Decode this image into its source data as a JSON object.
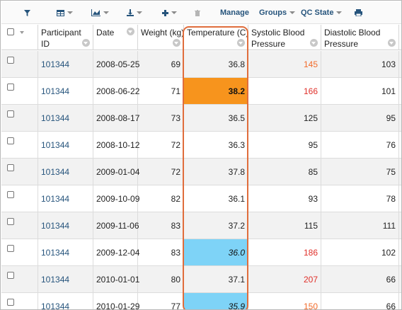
{
  "toolbar": {
    "manage_label": "Manage",
    "groups_label": "Groups",
    "qc_state_label": "QC State"
  },
  "columns": [
    {
      "key": "select",
      "label": ""
    },
    {
      "key": "participant_id",
      "label": "Participant ID"
    },
    {
      "key": "date",
      "label": "Date"
    },
    {
      "key": "weight",
      "label": "Weight (kg)"
    },
    {
      "key": "temperature",
      "label": "Temperature (C)"
    },
    {
      "key": "systolic",
      "label": "Systolic Blood Pressure"
    },
    {
      "key": "diastolic",
      "label": "Diastolic Blood Pressure"
    }
  ],
  "rows": [
    {
      "participant_id": "101344",
      "date": "2008-05-25",
      "weight": "69",
      "temperature": "36.8",
      "systolic": "145",
      "diastolic": "103"
    },
    {
      "participant_id": "101344",
      "date": "2008-06-22",
      "weight": "71",
      "temperature": "38.2",
      "systolic": "166",
      "diastolic": "101"
    },
    {
      "participant_id": "101344",
      "date": "2008-08-17",
      "weight": "73",
      "temperature": "36.5",
      "systolic": "125",
      "diastolic": "95"
    },
    {
      "participant_id": "101344",
      "date": "2008-10-12",
      "weight": "72",
      "temperature": "36.3",
      "systolic": "95",
      "diastolic": "76"
    },
    {
      "participant_id": "101344",
      "date": "2009-01-04",
      "weight": "72",
      "temperature": "37.8",
      "systolic": "85",
      "diastolic": "75"
    },
    {
      "participant_id": "101344",
      "date": "2009-10-09",
      "weight": "82",
      "temperature": "36.1",
      "systolic": "93",
      "diastolic": "78"
    },
    {
      "participant_id": "101344",
      "date": "2009-11-06",
      "weight": "83",
      "temperature": "37.2",
      "systolic": "115",
      "diastolic": "111"
    },
    {
      "participant_id": "101344",
      "date": "2009-12-04",
      "weight": "83",
      "temperature": "36.0",
      "systolic": "186",
      "diastolic": "102"
    },
    {
      "participant_id": "101344",
      "date": "2010-01-01",
      "weight": "80",
      "temperature": "37.1",
      "systolic": "207",
      "diastolic": "66"
    },
    {
      "participant_id": "101344",
      "date": "2010-01-29",
      "weight": "77",
      "temperature": "35.9",
      "systolic": "150",
      "diastolic": "66"
    }
  ],
  "styles": {
    "temp_high_bg": "#f7941d",
    "temp_low_bg": "#7ed3f7",
    "systolic_warn": "#f26b2a",
    "systolic_high": "#e0302a",
    "link_color": "#26547c",
    "outline_color": "#e06d3c"
  }
}
